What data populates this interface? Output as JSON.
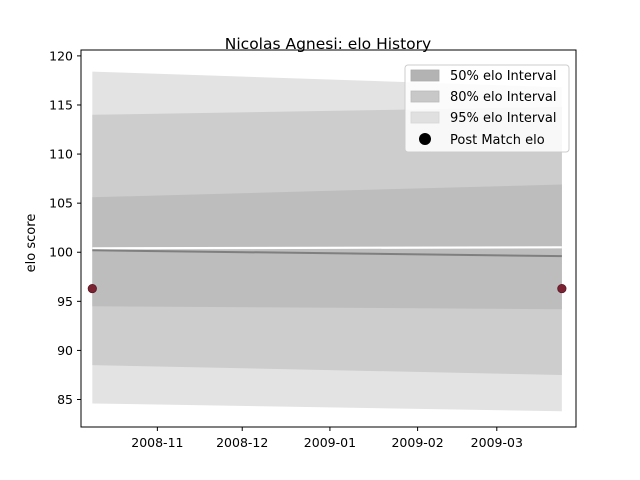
{
  "chart_data": {
    "type": "area",
    "title": "Nicolas Agnesi: elo History",
    "xlabel": "",
    "ylabel": "elo score",
    "ylim": [
      82.2,
      120.6
    ],
    "xlim": [
      "2008-10-05",
      "2009-03-29"
    ],
    "x": [
      "2008-10-09",
      "2009-03-24"
    ],
    "x_ticks": [
      "2008-11",
      "2008-12",
      "2009-01",
      "2009-02",
      "2009-03"
    ],
    "y_ticks": [
      85,
      90,
      95,
      100,
      105,
      110,
      115,
      120
    ],
    "grid": false,
    "legend_position": "top-right",
    "series": [
      {
        "name": "95% elo Interval",
        "kind": "band",
        "color": "#e3e3e3",
        "lower": [
          84.6,
          83.8
        ],
        "upper": [
          118.4,
          116.8
        ]
      },
      {
        "name": "80% elo Interval",
        "kind": "band",
        "color": "#cdcdcd",
        "lower": [
          88.5,
          87.5
        ],
        "upper": [
          114.0,
          114.8
        ]
      },
      {
        "name": "50% elo Interval",
        "kind": "band",
        "color": "#bdbdbd",
        "lower": [
          94.5,
          94.2
        ],
        "upper": [
          105.6,
          106.9
        ]
      },
      {
        "name": "",
        "kind": "line",
        "color": "#7f7f7f",
        "values": [
          100.2,
          99.6
        ]
      },
      {
        "name": "Post Match elo",
        "kind": "points",
        "color": "#7b2233",
        "values": [
          96.3,
          96.3
        ]
      }
    ],
    "center_strip": {
      "color": "#ffffff",
      "values": [
        100.4,
        100.5
      ]
    }
  }
}
